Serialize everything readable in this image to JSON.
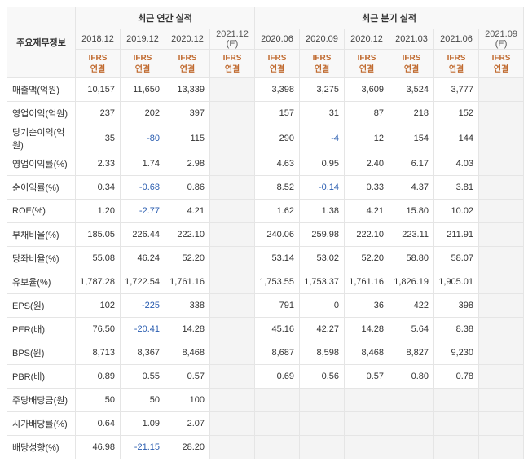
{
  "header": {
    "row_label_title": "주요재무정보",
    "annual_group": "최근 연간 실적",
    "quarter_group": "최근 분기 실적",
    "annual_periods": [
      "2018.12",
      "2019.12",
      "2020.12",
      "2021.12 (E)"
    ],
    "quarter_periods": [
      "2020.06",
      "2020.09",
      "2020.12",
      "2021.03",
      "2021.06",
      "2021.09 (E)"
    ],
    "ifrs_line1": "IFRS",
    "ifrs_line2": "연결"
  },
  "rows": [
    {
      "label": "매출액(억원)",
      "section": true,
      "annual": [
        "10,157",
        "11,650",
        "13,339",
        ""
      ],
      "quarter": [
        "3,398",
        "3,275",
        "3,609",
        "3,524",
        "3,777",
        ""
      ],
      "neg_a": [
        false,
        false,
        false,
        false
      ],
      "neg_q": [
        false,
        false,
        false,
        false,
        false,
        false
      ]
    },
    {
      "label": "영업이익(억원)",
      "section": false,
      "annual": [
        "237",
        "202",
        "397",
        ""
      ],
      "quarter": [
        "157",
        "31",
        "87",
        "218",
        "152",
        ""
      ],
      "neg_a": [
        false,
        false,
        false,
        false
      ],
      "neg_q": [
        false,
        false,
        false,
        false,
        false,
        false
      ]
    },
    {
      "label": "당기순이익(억원)",
      "section": false,
      "annual": [
        "35",
        "-80",
        "115",
        ""
      ],
      "quarter": [
        "290",
        "-4",
        "12",
        "154",
        "144",
        ""
      ],
      "neg_a": [
        false,
        true,
        false,
        false
      ],
      "neg_q": [
        false,
        true,
        false,
        false,
        false,
        false
      ]
    },
    {
      "label": "영업이익률(%)",
      "section": true,
      "annual": [
        "2.33",
        "1.74",
        "2.98",
        ""
      ],
      "quarter": [
        "4.63",
        "0.95",
        "2.40",
        "6.17",
        "4.03",
        ""
      ],
      "neg_a": [
        false,
        false,
        false,
        false
      ],
      "neg_q": [
        false,
        false,
        false,
        false,
        false,
        false
      ]
    },
    {
      "label": "순이익률(%)",
      "section": false,
      "annual": [
        "0.34",
        "-0.68",
        "0.86",
        ""
      ],
      "quarter": [
        "8.52",
        "-0.14",
        "0.33",
        "4.37",
        "3.81",
        ""
      ],
      "neg_a": [
        false,
        true,
        false,
        false
      ],
      "neg_q": [
        false,
        true,
        false,
        false,
        false,
        false
      ]
    },
    {
      "label": "ROE(%)",
      "section": false,
      "annual": [
        "1.20",
        "-2.77",
        "4.21",
        ""
      ],
      "quarter": [
        "1.62",
        "1.38",
        "4.21",
        "15.80",
        "10.02",
        ""
      ],
      "neg_a": [
        false,
        true,
        false,
        false
      ],
      "neg_q": [
        false,
        false,
        false,
        false,
        false,
        false
      ]
    },
    {
      "label": "부채비율(%)",
      "section": true,
      "annual": [
        "185.05",
        "226.44",
        "222.10",
        ""
      ],
      "quarter": [
        "240.06",
        "259.98",
        "222.10",
        "223.11",
        "211.91",
        ""
      ],
      "neg_a": [
        false,
        false,
        false,
        false
      ],
      "neg_q": [
        false,
        false,
        false,
        false,
        false,
        false
      ]
    },
    {
      "label": "당좌비율(%)",
      "section": false,
      "annual": [
        "55.08",
        "46.24",
        "52.20",
        ""
      ],
      "quarter": [
        "53.14",
        "53.02",
        "52.20",
        "58.80",
        "58.07",
        ""
      ],
      "neg_a": [
        false,
        false,
        false,
        false
      ],
      "neg_q": [
        false,
        false,
        false,
        false,
        false,
        false
      ]
    },
    {
      "label": "유보율(%)",
      "section": false,
      "annual": [
        "1,787.28",
        "1,722.54",
        "1,761.16",
        ""
      ],
      "quarter": [
        "1,753.55",
        "1,753.37",
        "1,761.16",
        "1,826.19",
        "1,905.01",
        ""
      ],
      "neg_a": [
        false,
        false,
        false,
        false
      ],
      "neg_q": [
        false,
        false,
        false,
        false,
        false,
        false
      ]
    },
    {
      "label": "EPS(원)",
      "section": true,
      "annual": [
        "102",
        "-225",
        "338",
        ""
      ],
      "quarter": [
        "791",
        "0",
        "36",
        "422",
        "398",
        ""
      ],
      "neg_a": [
        false,
        true,
        false,
        false
      ],
      "neg_q": [
        false,
        false,
        false,
        false,
        false,
        false
      ]
    },
    {
      "label": "PER(배)",
      "section": false,
      "annual": [
        "76.50",
        "-20.41",
        "14.28",
        ""
      ],
      "quarter": [
        "45.16",
        "42.27",
        "14.28",
        "5.64",
        "8.38",
        ""
      ],
      "neg_a": [
        false,
        true,
        false,
        false
      ],
      "neg_q": [
        false,
        false,
        false,
        false,
        false,
        false
      ]
    },
    {
      "label": "BPS(원)",
      "section": false,
      "annual": [
        "8,713",
        "8,367",
        "8,468",
        ""
      ],
      "quarter": [
        "8,687",
        "8,598",
        "8,468",
        "8,827",
        "9,230",
        ""
      ],
      "neg_a": [
        false,
        false,
        false,
        false
      ],
      "neg_q": [
        false,
        false,
        false,
        false,
        false,
        false
      ]
    },
    {
      "label": "PBR(배)",
      "section": false,
      "annual": [
        "0.89",
        "0.55",
        "0.57",
        ""
      ],
      "quarter": [
        "0.69",
        "0.56",
        "0.57",
        "0.80",
        "0.78",
        ""
      ],
      "neg_a": [
        false,
        false,
        false,
        false
      ],
      "neg_q": [
        false,
        false,
        false,
        false,
        false,
        false
      ]
    },
    {
      "label": "주당배당금(원)",
      "section": true,
      "annual": [
        "50",
        "50",
        "100",
        ""
      ],
      "quarter": [
        "",
        "",
        "",
        "",
        "",
        ""
      ],
      "neg_a": [
        false,
        false,
        false,
        false
      ],
      "neg_q": [
        false,
        false,
        false,
        false,
        false,
        false
      ],
      "q_empty": true
    },
    {
      "label": "시가배당률(%)",
      "section": false,
      "annual": [
        "0.64",
        "1.09",
        "2.07",
        ""
      ],
      "quarter": [
        "",
        "",
        "",
        "",
        "",
        ""
      ],
      "neg_a": [
        false,
        false,
        false,
        false
      ],
      "neg_q": [
        false,
        false,
        false,
        false,
        false,
        false
      ],
      "q_empty": true
    },
    {
      "label": "배당성향(%)",
      "section": false,
      "annual": [
        "46.98",
        "-21.15",
        "28.20",
        ""
      ],
      "quarter": [
        "",
        "",
        "",
        "",
        "",
        ""
      ],
      "neg_a": [
        false,
        true,
        false,
        false
      ],
      "neg_q": [
        false,
        false,
        false,
        false,
        false,
        false
      ],
      "q_empty": true
    }
  ],
  "layout": {
    "annual_est_index": 3,
    "quarter_est_index": 5
  }
}
